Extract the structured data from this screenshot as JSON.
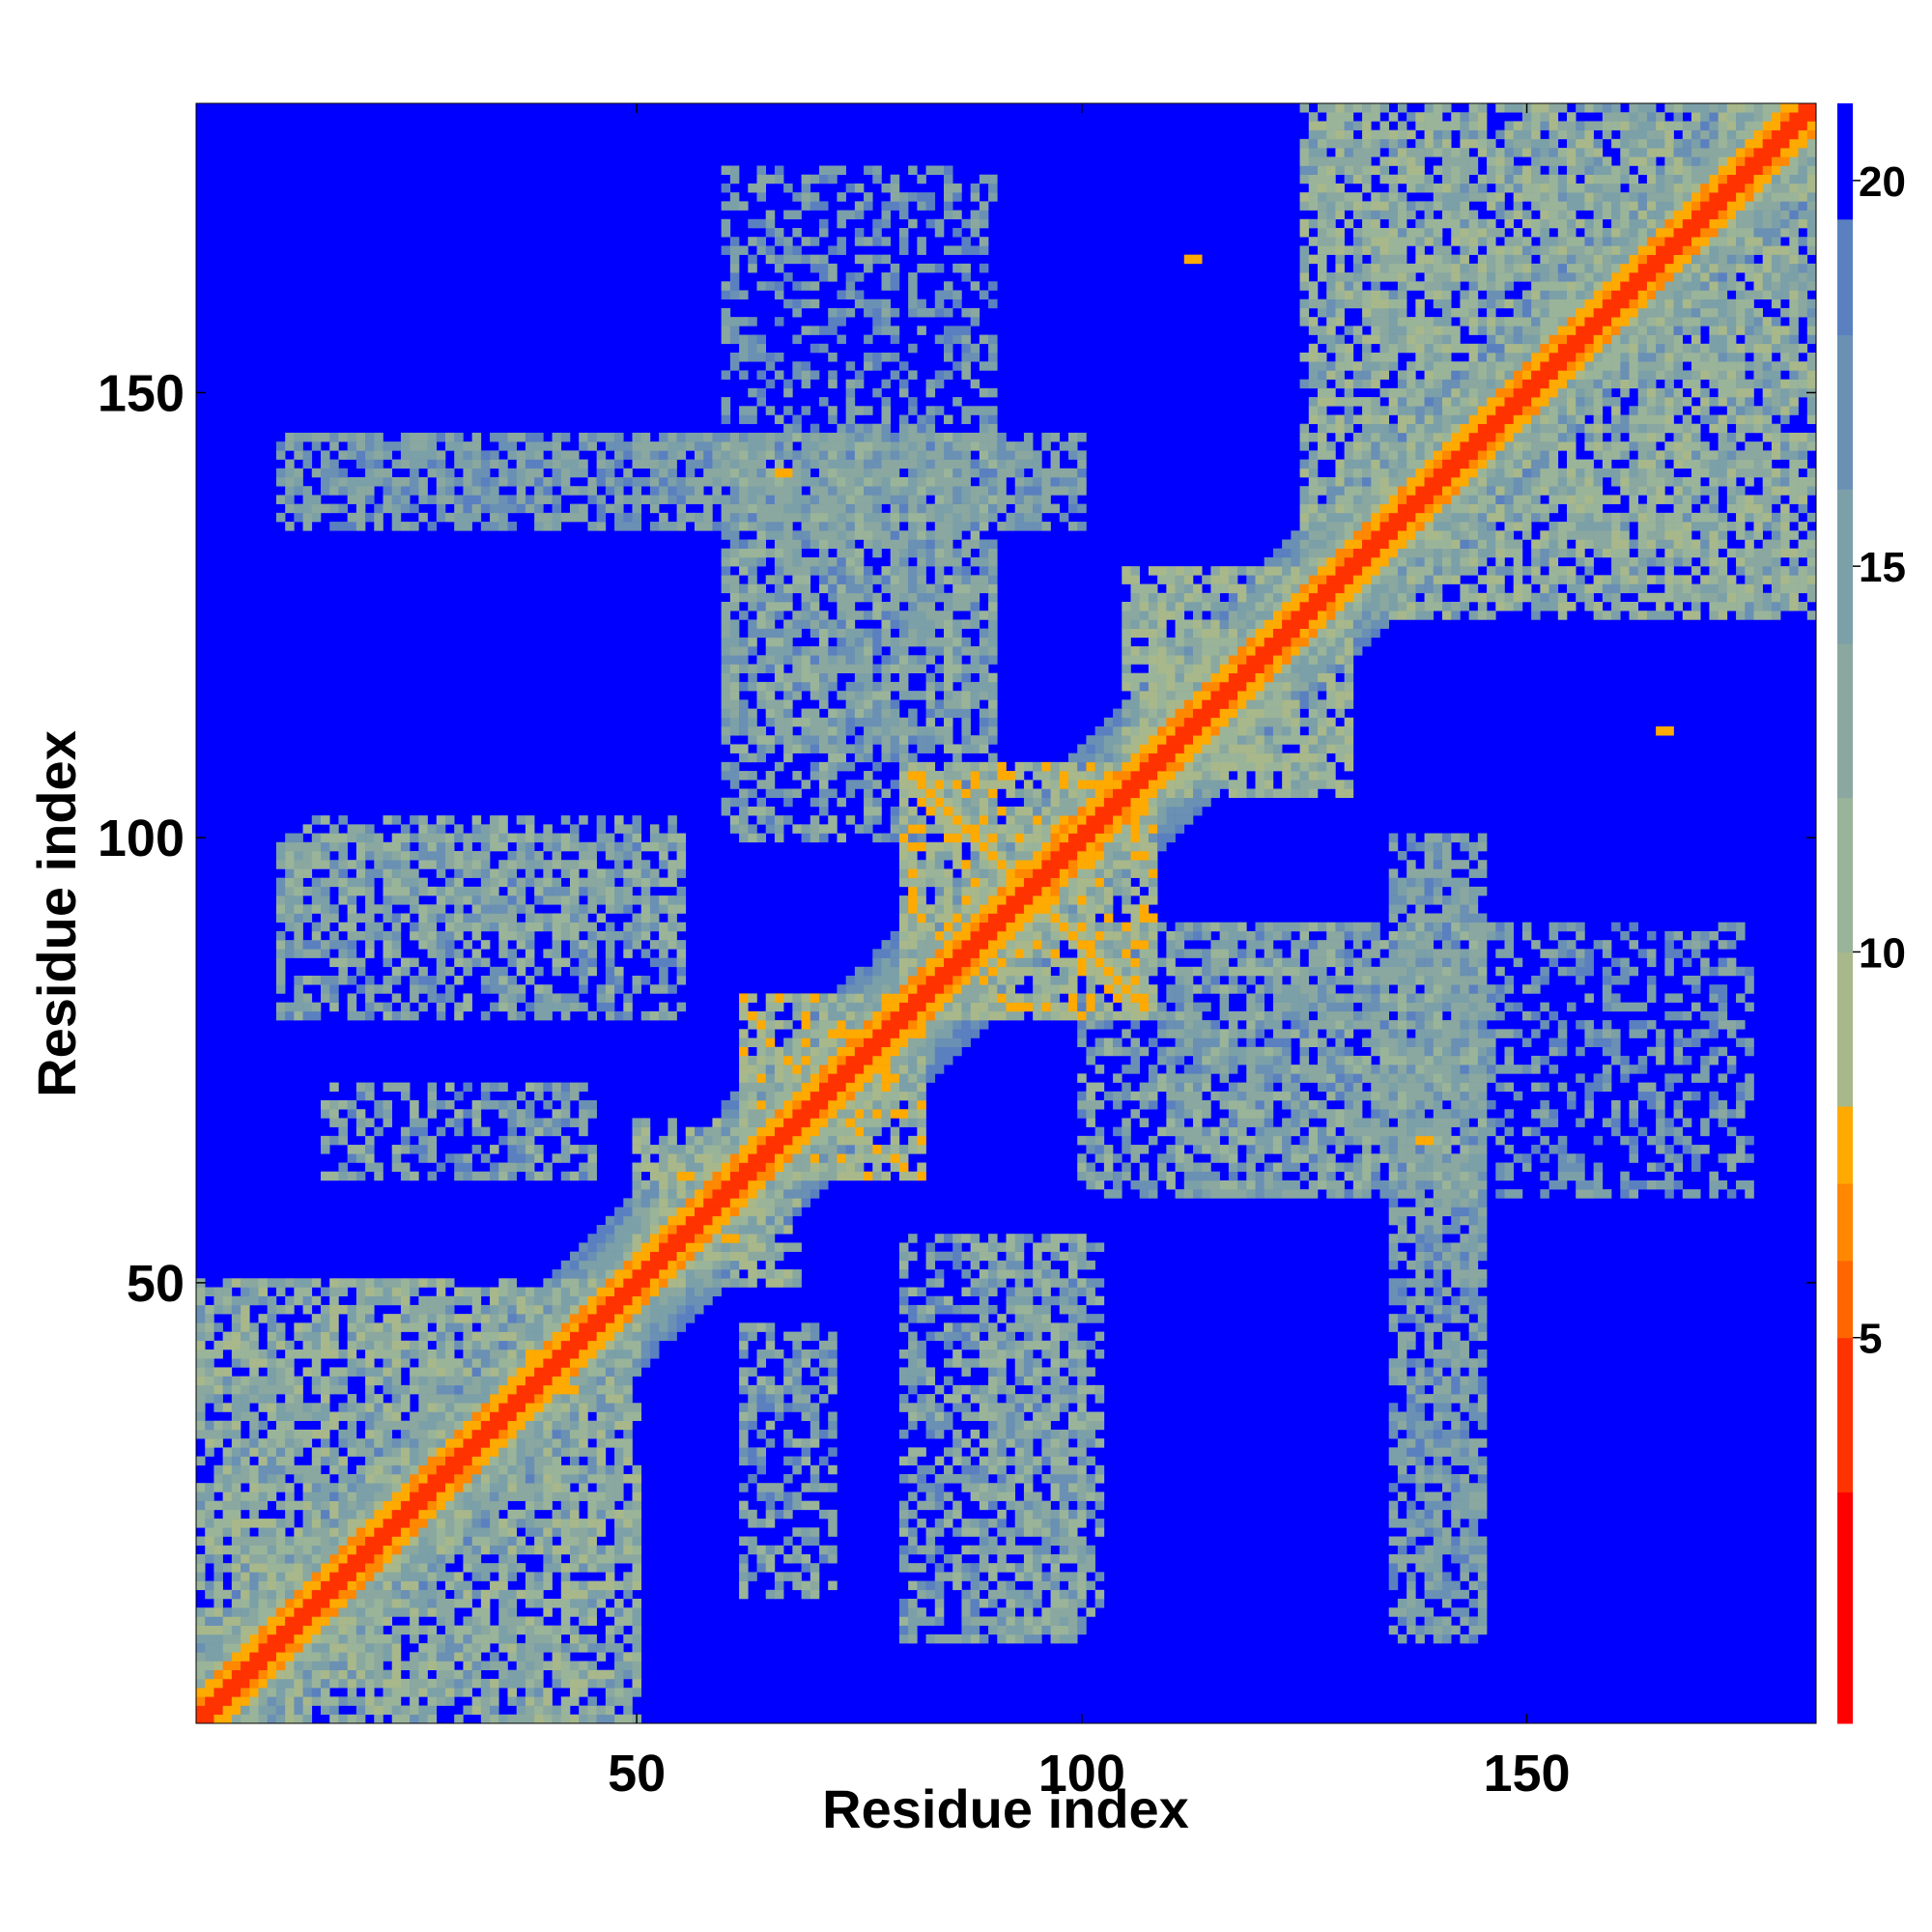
{
  "chart_data": {
    "type": "heatmap",
    "title": "",
    "xlabel": "Residue index",
    "ylabel": "Residue index",
    "n_residues": 182,
    "xlim": [
      1,
      182
    ],
    "ylim": [
      1,
      182
    ],
    "xticks": [
      50,
      100,
      150
    ],
    "yticks": [
      50,
      100,
      150
    ],
    "colorbar": {
      "ticks": [
        5,
        10,
        15,
        20
      ],
      "range": [
        0,
        21
      ],
      "colors": [
        {
          "from": 0,
          "to": 3,
          "color": "#ff0000"
        },
        {
          "from": 3,
          "to": 5,
          "color": "#ff3300"
        },
        {
          "from": 5,
          "to": 6,
          "color": "#ff6600"
        },
        {
          "from": 6,
          "to": 7,
          "color": "#ff8800"
        },
        {
          "from": 7,
          "to": 8,
          "color": "#ffaa00"
        },
        {
          "from": 8,
          "to": 10,
          "color": "#a8b88a"
        },
        {
          "from": 10,
          "to": 12,
          "color": "#9ab49a"
        },
        {
          "from": 12,
          "to": 14,
          "color": "#8aa8a0"
        },
        {
          "from": 14,
          "to": 16,
          "color": "#7ca0a8"
        },
        {
          "from": 16,
          "to": 18,
          "color": "#6a90b4"
        },
        {
          "from": 18,
          "to": 19.5,
          "color": "#5a80c0"
        },
        {
          "from": 19.5,
          "to": 21,
          "color": "#0000ff"
        }
      ]
    },
    "description_values": {
      "background_distance": 21,
      "diagonal_distance": 3.8,
      "near_diagonal_contact": 6.5
    },
    "contact_regions": [
      {
        "x": [
          1,
          50
        ],
        "y": [
          1,
          50
        ],
        "level": 13
      },
      {
        "x": [
          50,
          66
        ],
        "y": [
          50,
          68
        ],
        "level": 12
      },
      {
        "x": [
          62,
          82
        ],
        "y": [
          62,
          82
        ],
        "level": 11
      },
      {
        "x": [
          80,
          108
        ],
        "y": [
          80,
          108
        ],
        "level": 11
      },
      {
        "x": [
          105,
          130
        ],
        "y": [
          105,
          130
        ],
        "level": 12
      },
      {
        "x": [
          125,
          182
        ],
        "y": [
          125,
          182
        ],
        "level": 13
      },
      {
        "x": [
          10,
          55
        ],
        "y": [
          88,
          102
        ],
        "level": 14
      },
      {
        "x": [
          15,
          45
        ],
        "y": [
          62,
          72
        ],
        "level": 15
      },
      {
        "x": [
          60,
          90
        ],
        "y": [
          110,
          145
        ],
        "level": 15
      },
      {
        "x": [
          80,
          100
        ],
        "y": [
          10,
          55
        ],
        "level": 15
      },
      {
        "x": [
          100,
          145
        ],
        "y": [
          60,
          90
        ],
        "level": 15
      },
      {
        "x": [
          135,
          145
        ],
        "y": [
          10,
          100
        ],
        "level": 16
      },
      {
        "x": [
          10,
          100
        ],
        "y": [
          135,
          145
        ],
        "level": 16
      },
      {
        "x": [
          60,
          90
        ],
        "y": [
          145,
          175
        ],
        "level": 17
      }
    ],
    "anti_diagonal_contacts": [
      {
        "from": [
          82,
          106
        ],
        "to": [
          107,
          81
        ],
        "level": 7
      }
    ],
    "isolated_contacts": [
      {
        "x": 66,
        "y": 141,
        "level": 7
      },
      {
        "x": 138,
        "y": 66,
        "level": 7
      },
      {
        "x": 112,
        "y": 165,
        "level": 7
      },
      {
        "x": 165,
        "y": 112,
        "level": 7
      },
      {
        "x": 60,
        "y": 55,
        "level": 7
      },
      {
        "x": 55,
        "y": 62,
        "level": 7
      },
      {
        "x": 38,
        "y": 42,
        "level": 7
      },
      {
        "x": 42,
        "y": 38,
        "level": 7
      }
    ]
  }
}
